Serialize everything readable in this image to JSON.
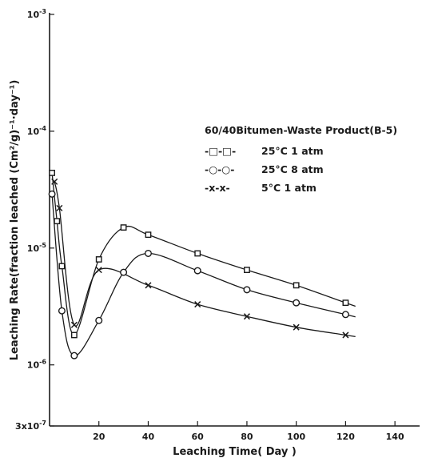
{
  "chart_data": {
    "type": "line",
    "title": "",
    "xlabel": "Leaching Time( Day )",
    "ylabel": "Leaching Rate(fraction leached (Cm²/g)⁻¹·day⁻¹)",
    "x_scale": "linear",
    "y_scale": "log",
    "xlim": [
      0,
      150
    ],
    "ylim": [
      3e-07,
      0.001
    ],
    "x_ticks": [
      {
        "value": 20,
        "label": "20"
      },
      {
        "value": 40,
        "label": "40"
      },
      {
        "value": 60,
        "label": "60"
      },
      {
        "value": 80,
        "label": "80"
      },
      {
        "value": 100,
        "label": "100"
      },
      {
        "value": 120,
        "label": "120"
      },
      {
        "value": 140,
        "label": "140"
      }
    ],
    "y_ticks": [
      {
        "value": 0.001,
        "base": "10",
        "exp": "-3"
      },
      {
        "value": 0.0001,
        "base": "10",
        "exp": "-4"
      },
      {
        "value": 1e-05,
        "base": "10",
        "exp": "-5"
      },
      {
        "value": 1e-06,
        "base": "10",
        "exp": "-6"
      },
      {
        "value": 3e-07,
        "base": "3x10",
        "exp": "-7"
      }
    ],
    "grid": false,
    "legend_title": "60/40Bitumen-Waste Product(B-5)",
    "legend_position": "top-right",
    "series": [
      {
        "name": "25°C 1 atm",
        "legend_symbol": "-□-□-",
        "marker": "square",
        "x": [
          1,
          3,
          5,
          10,
          20,
          30,
          40,
          60,
          80,
          100,
          120
        ],
        "y": [
          4.4e-05,
          1.7e-05,
          7e-06,
          1.8e-06,
          8e-06,
          1.5e-05,
          1.3e-05,
          9e-06,
          6.5e-06,
          4.8e-06,
          3.4e-06
        ]
      },
      {
        "name": "25°C 8 atm",
        "legend_symbol": "-○-○-",
        "marker": "circle",
        "x": [
          1,
          5,
          10,
          20,
          30,
          40,
          60,
          80,
          100,
          120
        ],
        "y": [
          2.9e-05,
          2.9e-06,
          1.2e-06,
          2.4e-06,
          6.2e-06,
          9e-06,
          6.4e-06,
          4.4e-06,
          3.4e-06,
          2.7e-06
        ]
      },
      {
        "name": "5°C 1 atm",
        "legend_symbol": "-x-x-",
        "marker": "x",
        "x": [
          2,
          4,
          10,
          20,
          40,
          60,
          80,
          100,
          120
        ],
        "y": [
          3.7e-05,
          2.2e-05,
          2.2e-06,
          6.5e-06,
          4.8e-06,
          3.3e-06,
          2.6e-06,
          2.1e-06,
          1.8e-06
        ]
      }
    ]
  }
}
